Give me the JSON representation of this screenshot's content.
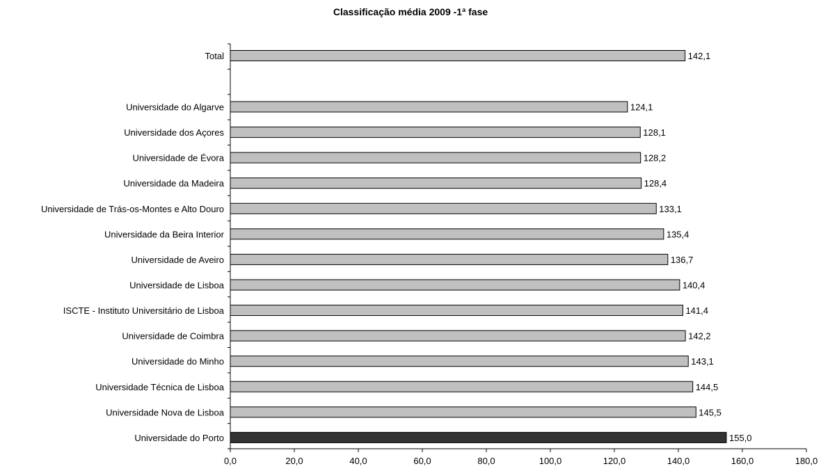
{
  "chart_data": {
    "type": "bar",
    "orientation": "horizontal",
    "title": "Classificação média 2009 -1ª fase",
    "xlim": [
      0,
      180
    ],
    "xticks": [
      "0,0",
      "20,0",
      "40,0",
      "60,0",
      "80,0",
      "100,0",
      "120,0",
      "140,0",
      "160,0",
      "180,0"
    ],
    "grid": false,
    "legend": "none",
    "colors": {
      "default_bar": "#c0c0c0",
      "highlight_bar": "#333333",
      "bar_border": "#000000"
    },
    "bars": [
      {
        "category": "Total",
        "value": 142.1,
        "label": "142,1",
        "highlight": false
      },
      {
        "category": "Universidade do Algarve",
        "value": 124.1,
        "label": "124,1",
        "highlight": false
      },
      {
        "category": "Universidade dos Açores",
        "value": 128.1,
        "label": "128,1",
        "highlight": false
      },
      {
        "category": "Universidade de Évora",
        "value": 128.2,
        "label": "128,2",
        "highlight": false
      },
      {
        "category": "Universidade da Madeira",
        "value": 128.4,
        "label": "128,4",
        "highlight": false
      },
      {
        "category": "Universidade de Trás-os-Montes e Alto Douro",
        "value": 133.1,
        "label": "133,1",
        "highlight": false
      },
      {
        "category": "Universidade da Beira Interior",
        "value": 135.4,
        "label": "135,4",
        "highlight": false
      },
      {
        "category": "Universidade de Aveiro",
        "value": 136.7,
        "label": "136,7",
        "highlight": false
      },
      {
        "category": "Universidade de Lisboa",
        "value": 140.4,
        "label": "140,4",
        "highlight": false
      },
      {
        "category": "ISCTE - Instituto Universitário de Lisboa",
        "value": 141.4,
        "label": "141,4",
        "highlight": false
      },
      {
        "category": "Universidade de Coimbra",
        "value": 142.2,
        "label": "142,2",
        "highlight": false
      },
      {
        "category": "Universidade do Minho",
        "value": 143.1,
        "label": "143,1",
        "highlight": false
      },
      {
        "category": "Universidade Técnica de Lisboa",
        "value": 144.5,
        "label": "144,5",
        "highlight": false
      },
      {
        "category": "Universidade Nova de Lisboa",
        "value": 145.5,
        "label": "145,5",
        "highlight": false
      },
      {
        "category": "Universidade do Porto",
        "value": 155.0,
        "label": "155,0",
        "highlight": true
      }
    ]
  }
}
